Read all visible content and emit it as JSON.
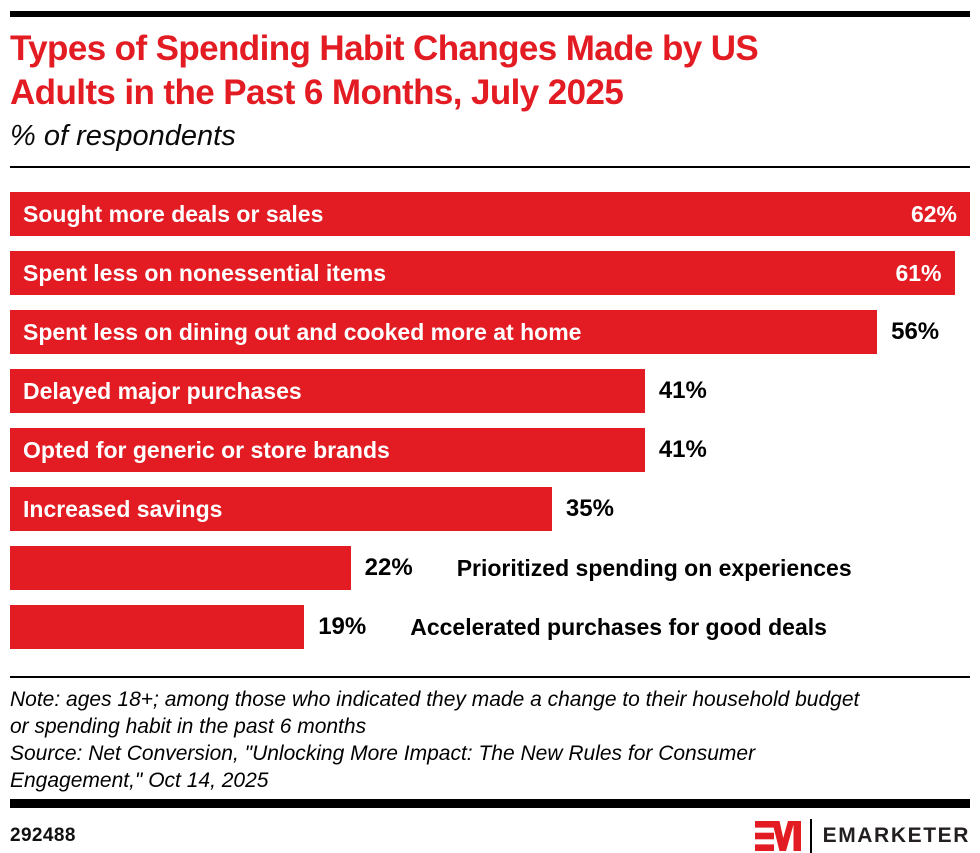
{
  "header": {
    "title": "Types of Spending Habit Changes Made by US Adults in the Past 6 Months, July 2025",
    "title_line1": "Types of Spending Habit Changes Made by US",
    "title_line2": "Adults in the Past 6 Months, July 2025",
    "subtitle": "% of respondents"
  },
  "chart_data": {
    "type": "bar",
    "orientation": "horizontal",
    "unit": "%",
    "title": "Types of Spending Habit Changes Made by US Adults in the Past 6 Months, July 2025",
    "subtitle": "% of respondents",
    "xlim": [
      0,
      62
    ],
    "categories": [
      "Sought more deals or sales",
      "Spent less on nonessential items",
      "Spent less on dining out and cooked more at home",
      "Delayed major purchases",
      "Opted for generic or store brands",
      "Increased savings",
      "Prioritized spending on experiences",
      "Accelerated purchases for good deals"
    ],
    "values": [
      62,
      61,
      56,
      41,
      41,
      35,
      22,
      19
    ],
    "bars": [
      {
        "label": "Sought more deals or sales",
        "value": 62,
        "value_text": "62%",
        "label_placement": "inside",
        "value_placement": "inside"
      },
      {
        "label": "Spent less on nonessential items",
        "value": 61,
        "value_text": "61%",
        "label_placement": "inside",
        "value_placement": "inside"
      },
      {
        "label": "Spent less on dining out and cooked more at home",
        "value": 56,
        "value_text": "56%",
        "label_placement": "inside",
        "value_placement": "outside"
      },
      {
        "label": "Delayed major purchases",
        "value": 41,
        "value_text": "41%",
        "label_placement": "inside",
        "value_placement": "outside"
      },
      {
        "label": "Opted for generic or store brands",
        "value": 41,
        "value_text": "41%",
        "label_placement": "inside",
        "value_placement": "outside"
      },
      {
        "label": "Increased savings",
        "value": 35,
        "value_text": "35%",
        "label_placement": "inside",
        "value_placement": "outside"
      },
      {
        "label": "Prioritized spending on experiences",
        "value": 22,
        "value_text": "22%",
        "label_placement": "outside",
        "value_placement": "outside"
      },
      {
        "label": "Accelerated purchases for good deals",
        "value": 19,
        "value_text": "19%",
        "label_placement": "outside",
        "value_placement": "outside"
      }
    ],
    "bar_color": "#e31b23",
    "grid": false,
    "legend": "none"
  },
  "footnote": {
    "note": "Note: ages 18+; among those who indicated they made a change to their household budget or spending habit in the past 6 months",
    "source": "Source: Net Conversion, \"Unlocking More Impact: The New Rules for Consumer Engagement,\" Oct 14, 2025",
    "lines": [
      "Note: ages 18+; among those who indicated they made a change to their household budget",
      "or spending habit in the past 6 months",
      "Source: Net Conversion, \"Unlocking More Impact: The New Rules for Consumer",
      "Engagement,\" Oct 14, 2025"
    ]
  },
  "footer": {
    "chart_id": "292488",
    "brand_name": "EMARKETER",
    "logo_monogram": "EM"
  },
  "colors": {
    "accent_red": "#e31b23",
    "bar_text_white": "#ffffff",
    "text_black": "#000000",
    "wordmark_black": "#231f20"
  }
}
